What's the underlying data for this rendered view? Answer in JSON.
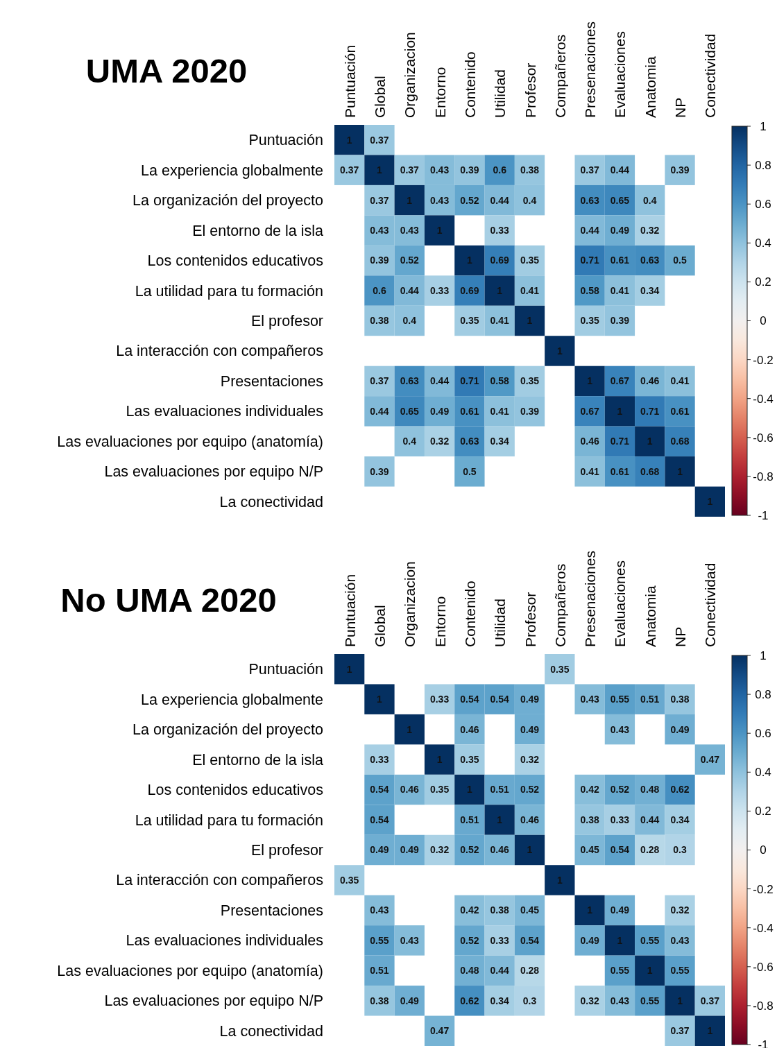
{
  "chart_data": [
    {
      "type": "heatmap",
      "title": "UMA 2020",
      "categories": [
        "Puntuación",
        "Global",
        "Organizacion",
        "Entorno",
        "Contenido",
        "Utilidad",
        "Profesor",
        "Compañeros",
        "Presenaciones",
        "Evaluaciones",
        "Anatomia",
        "NP",
        "Conectividad"
      ],
      "y_categories": [
        "Puntuación",
        "La experiencia globalmente",
        "La organización del proyecto",
        "El entorno de la isla",
        "Los contenidos educativos",
        "La utilidad para tu formación",
        "El profesor",
        "La interacción con compañeros",
        "Presentaciones",
        "Las evaluaciones individuales",
        "Las evaluaciones por equipo (anatomía)",
        "Las evaluaciones por equipo N/P",
        "La conectividad"
      ],
      "cells": [
        [
          1,
          0.37,
          null,
          null,
          null,
          null,
          null,
          null,
          null,
          null,
          null,
          null,
          null
        ],
        [
          0.37,
          1,
          0.37,
          0.43,
          0.39,
          0.6,
          0.38,
          null,
          0.37,
          0.44,
          null,
          0.39,
          null
        ],
        [
          null,
          0.37,
          1,
          0.43,
          0.52,
          0.44,
          0.4,
          null,
          0.63,
          0.65,
          0.4,
          null,
          null
        ],
        [
          null,
          0.43,
          0.43,
          1,
          null,
          0.33,
          null,
          null,
          0.44,
          0.49,
          0.32,
          null,
          null
        ],
        [
          null,
          0.39,
          0.52,
          null,
          1,
          0.69,
          0.35,
          null,
          0.71,
          0.61,
          0.63,
          0.5,
          null
        ],
        [
          null,
          0.6,
          0.44,
          0.33,
          0.69,
          1,
          0.41,
          null,
          0.58,
          0.41,
          0.34,
          null,
          null
        ],
        [
          null,
          0.38,
          0.4,
          null,
          0.35,
          0.41,
          1,
          null,
          0.35,
          0.39,
          null,
          null,
          null
        ],
        [
          null,
          null,
          null,
          null,
          null,
          null,
          null,
          1,
          null,
          null,
          null,
          null,
          null
        ],
        [
          null,
          0.37,
          0.63,
          0.44,
          0.71,
          0.58,
          0.35,
          null,
          1,
          0.67,
          0.46,
          0.41,
          null
        ],
        [
          null,
          0.44,
          0.65,
          0.49,
          0.61,
          0.41,
          0.39,
          null,
          0.67,
          1,
          0.71,
          0.61,
          null
        ],
        [
          null,
          null,
          0.4,
          0.32,
          0.63,
          0.34,
          null,
          null,
          0.46,
          0.71,
          1,
          0.68,
          null
        ],
        [
          null,
          0.39,
          null,
          null,
          0.5,
          null,
          null,
          null,
          0.41,
          0.61,
          0.68,
          1,
          null
        ],
        [
          null,
          null,
          null,
          null,
          null,
          null,
          null,
          null,
          null,
          null,
          null,
          null,
          1
        ]
      ],
      "clim": [
        -1,
        1
      ],
      "cticks": [
        1,
        0.8,
        0.6,
        0.4,
        0.2,
        0,
        -0.2,
        -0.4,
        -0.6,
        -0.8,
        -1
      ],
      "data_labels": true
    },
    {
      "type": "heatmap",
      "title": "No UMA 2020",
      "categories": [
        "Puntuación",
        "Global",
        "Organizacion",
        "Entorno",
        "Contenido",
        "Utilidad",
        "Profesor",
        "Compañeros",
        "Presenaciones",
        "Evaluaciones",
        "Anatomia",
        "NP",
        "Conectividad"
      ],
      "y_categories": [
        "Puntuación",
        "La experiencia globalmente",
        "La organización del proyecto",
        "El entorno de la isla",
        "Los contenidos educativos",
        "La utilidad para tu formación",
        "El profesor",
        "La interacción con compañeros",
        "Presentaciones",
        "Las evaluaciones individuales",
        "Las evaluaciones por equipo (anatomía)",
        "Las evaluaciones por equipo N/P",
        "La conectividad"
      ],
      "cells": [
        [
          1,
          null,
          null,
          null,
          null,
          null,
          null,
          0.35,
          null,
          null,
          null,
          null,
          null
        ],
        [
          null,
          1,
          null,
          0.33,
          0.54,
          0.54,
          0.49,
          null,
          0.43,
          0.55,
          0.51,
          0.38,
          null
        ],
        [
          null,
          null,
          1,
          null,
          0.46,
          null,
          0.49,
          null,
          null,
          0.43,
          null,
          0.49,
          null
        ],
        [
          null,
          0.33,
          null,
          1,
          0.35,
          null,
          0.32,
          null,
          null,
          null,
          null,
          null,
          0.47
        ],
        [
          null,
          0.54,
          0.46,
          0.35,
          1,
          0.51,
          0.52,
          null,
          0.42,
          0.52,
          0.48,
          0.62,
          null
        ],
        [
          null,
          0.54,
          null,
          null,
          0.51,
          1,
          0.46,
          null,
          0.38,
          0.33,
          0.44,
          0.34,
          null
        ],
        [
          null,
          0.49,
          0.49,
          0.32,
          0.52,
          0.46,
          1,
          null,
          0.45,
          0.54,
          0.28,
          0.3,
          null
        ],
        [
          0.35,
          null,
          null,
          null,
          null,
          null,
          null,
          1,
          null,
          null,
          null,
          null,
          null
        ],
        [
          null,
          0.43,
          null,
          null,
          0.42,
          0.38,
          0.45,
          null,
          1,
          0.49,
          null,
          0.32,
          null
        ],
        [
          null,
          0.55,
          0.43,
          null,
          0.52,
          0.33,
          0.54,
          null,
          0.49,
          1,
          0.55,
          0.43,
          null
        ],
        [
          null,
          0.51,
          null,
          null,
          0.48,
          0.44,
          0.28,
          null,
          null,
          0.55,
          1,
          0.55,
          null
        ],
        [
          null,
          0.38,
          0.49,
          null,
          0.62,
          0.34,
          0.3,
          null,
          0.32,
          0.43,
          0.55,
          1,
          0.37
        ],
        [
          null,
          null,
          null,
          0.47,
          null,
          null,
          null,
          null,
          null,
          null,
          null,
          0.37,
          1
        ]
      ],
      "clim": [
        -1,
        1
      ],
      "cticks": [
        1,
        0.8,
        0.6,
        0.4,
        0.2,
        0,
        -0.2,
        -0.4,
        -0.6,
        -0.8,
        -1
      ],
      "data_labels": true
    }
  ]
}
